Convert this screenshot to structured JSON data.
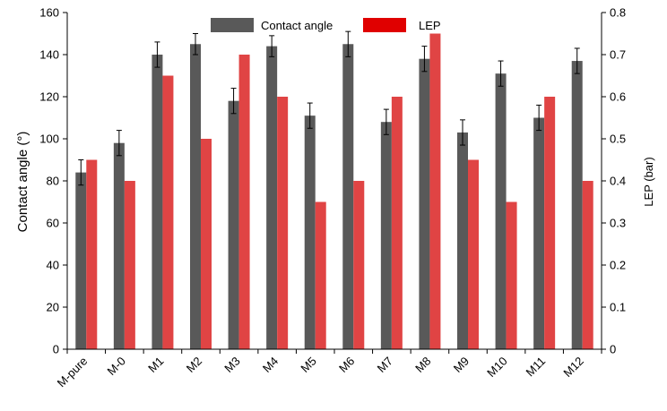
{
  "chart_data": {
    "type": "bar",
    "categories": [
      "M-pure",
      "M-0",
      "M1",
      "M2",
      "M3",
      "M4",
      "M5",
      "M6",
      "M7",
      "M8",
      "M9",
      "M10",
      "M11",
      "M12"
    ],
    "series": [
      {
        "name": "Contact angle",
        "axis": "left",
        "color": "#595959",
        "values": [
          84,
          98,
          140,
          145,
          118,
          144,
          111,
          145,
          108,
          138,
          103,
          131,
          110,
          137
        ],
        "errors": [
          6,
          6,
          6,
          5,
          6,
          5,
          6,
          6,
          6,
          6,
          6,
          6,
          6,
          6
        ]
      },
      {
        "name": "LEP",
        "axis": "right",
        "color": "#e04444",
        "values": [
          0.45,
          0.4,
          0.65,
          0.5,
          0.7,
          0.6,
          0.35,
          0.4,
          0.6,
          0.75,
          0.45,
          0.35,
          0.6,
          0.4
        ]
      }
    ],
    "ylabel": "Contact angle (°)",
    "y2label": "LEP (bar)",
    "ylim": [
      0,
      160
    ],
    "y2lim": [
      0,
      0.8
    ],
    "yticks": [
      "0",
      "20",
      "40",
      "60",
      "80",
      "100",
      "120",
      "140",
      "160"
    ],
    "y2ticks": [
      "0",
      "0.1",
      "0.2",
      "0.3",
      "0.4",
      "0.5",
      "0.6",
      "0.7",
      "0.8"
    ],
    "legend_position": "top-center",
    "grid": false
  }
}
